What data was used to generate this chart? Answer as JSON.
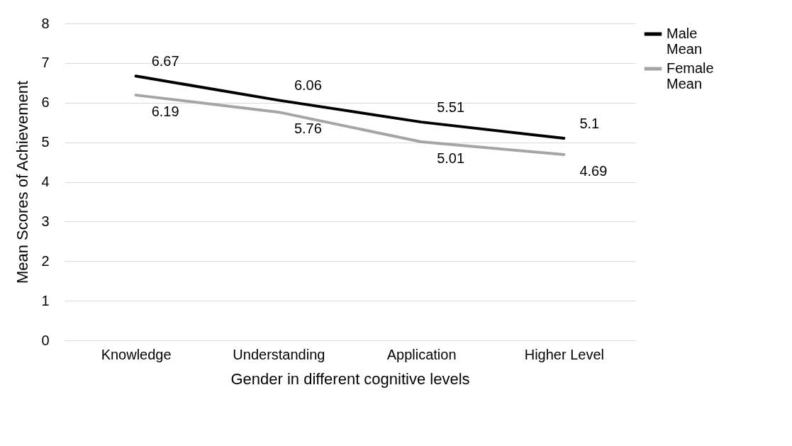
{
  "chart_data": {
    "type": "line",
    "xlabel": "Gender in different cognitive levels",
    "ylabel": "Mean Scores of Achievement",
    "categories": [
      "Knowledge",
      "Understanding",
      "Application",
      "Higher Level"
    ],
    "series": [
      {
        "name": "Male Mean",
        "color": "#000000",
        "values": [
          6.67,
          6.06,
          5.51,
          5.1
        ]
      },
      {
        "name": "Female Mean",
        "color": "#a5a5a5",
        "values": [
          6.19,
          5.76,
          5.01,
          4.69
        ]
      }
    ],
    "ylim": [
      0,
      8
    ],
    "yticks": [
      0,
      1,
      2,
      3,
      4,
      5,
      6,
      7,
      8
    ],
    "grid": "y",
    "legend": "right",
    "data_labels": true,
    "marker": "none",
    "line_style": "solid"
  }
}
